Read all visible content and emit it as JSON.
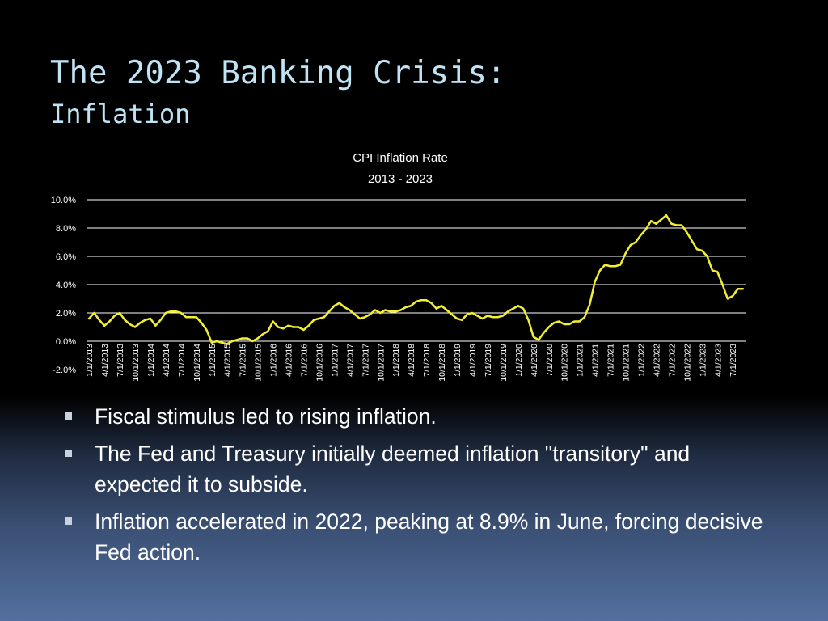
{
  "slide": {
    "title": "The 2023 Banking Crisis:",
    "subtitle": "Inflation"
  },
  "bullets": [
    "Fiscal stimulus led to rising inflation.",
    "The Fed and Treasury initially deemed inflation \"transitory\" and expected it to subside.",
    "Inflation accelerated in 2022, peaking at 8.9% in June, forcing decisive Fed action."
  ],
  "colors": {
    "background_top": "#000000",
    "background_bottom": "#5470a0",
    "title": "#bfe3f5",
    "line": "#f2ee30",
    "gridline": "#ffffff",
    "text": "#ffffff"
  },
  "chart_data": {
    "type": "line",
    "title": "CPI Inflation Rate",
    "subtitle": "2013 - 2023",
    "xlabel": "",
    "ylabel": "",
    "ylim": [
      -2.0,
      10.0
    ],
    "y_ticks": [
      "-2.0%",
      "0.0%",
      "2.0%",
      "4.0%",
      "6.0%",
      "8.0%",
      "10.0%"
    ],
    "x_tick_labels": [
      "1/1/2013",
      "4/1/2013",
      "7/1/2013",
      "10/1/2013",
      "1/1/2014",
      "4/1/2014",
      "7/1/2014",
      "10/1/2014",
      "1/1/2015",
      "4/1/2015",
      "7/1/2015",
      "10/1/2015",
      "1/1/2016",
      "4/1/2016",
      "7/1/2016",
      "10/1/2016",
      "1/1/2017",
      "4/1/2017",
      "7/1/2017",
      "10/1/2017",
      "1/1/2018",
      "4/1/2018",
      "7/1/2018",
      "10/1/2018",
      "1/1/2019",
      "4/1/2019",
      "7/1/2019",
      "10/1/2019",
      "1/1/2020",
      "4/1/2020",
      "7/1/2020",
      "10/1/2020",
      "1/1/2021",
      "4/1/2021",
      "7/1/2021",
      "10/1/2021",
      "1/1/2022",
      "4/1/2022",
      "7/1/2022",
      "10/1/2022",
      "1/1/2023",
      "4/1/2023",
      "7/1/2023"
    ],
    "grid": true,
    "legend": "none",
    "series": [
      {
        "values": [
          1.6,
          2.0,
          1.5,
          1.1,
          1.4,
          1.8,
          2.0,
          1.5,
          1.2,
          1.0,
          1.3,
          1.5,
          1.6,
          1.1,
          1.5,
          2.0,
          2.1,
          2.1,
          2.0,
          1.7,
          1.7,
          1.7,
          1.3,
          0.8,
          -0.1,
          0.0,
          -0.1,
          -0.2,
          0.0,
          0.1,
          0.2,
          0.2,
          0.0,
          0.2,
          0.5,
          0.7,
          1.4,
          1.0,
          0.9,
          1.1,
          1.0,
          1.0,
          0.8,
          1.1,
          1.5,
          1.6,
          1.7,
          2.1,
          2.5,
          2.7,
          2.4,
          2.2,
          1.9,
          1.6,
          1.7,
          1.9,
          2.2,
          2.0,
          2.2,
          2.1,
          2.1,
          2.2,
          2.4,
          2.5,
          2.8,
          2.9,
          2.9,
          2.7,
          2.3,
          2.5,
          2.2,
          1.9,
          1.6,
          1.5,
          1.9,
          2.0,
          1.8,
          1.6,
          1.8,
          1.7,
          1.7,
          1.8,
          2.1,
          2.3,
          2.5,
          2.3,
          1.5,
          0.3,
          0.1,
          0.6,
          1.0,
          1.3,
          1.4,
          1.2,
          1.2,
          1.4,
          1.4,
          1.7,
          2.6,
          4.2,
          5.0,
          5.4,
          5.3,
          5.3,
          5.4,
          6.2,
          6.8,
          7.0,
          7.5,
          7.9,
          8.5,
          8.3,
          8.6,
          8.9,
          8.3,
          8.2,
          8.2,
          7.7,
          7.1,
          6.5,
          6.4,
          6.0,
          5.0,
          4.9,
          4.0,
          3.0,
          3.2,
          3.7,
          3.7
        ]
      }
    ]
  }
}
